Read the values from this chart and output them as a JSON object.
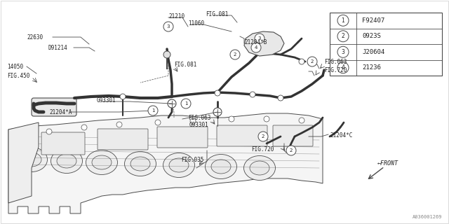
{
  "background_color": "#ffffff",
  "legend_items": [
    {
      "num": "1",
      "code": "F92407"
    },
    {
      "num": "2",
      "code": "0923S"
    },
    {
      "num": "3",
      "code": "J20604"
    },
    {
      "num": "4",
      "code": "21236"
    }
  ],
  "watermark": "A036001269",
  "line_color": "#4a4a4a",
  "text_color": "#222222",
  "figsize": [
    6.4,
    3.2
  ],
  "dpi": 100
}
